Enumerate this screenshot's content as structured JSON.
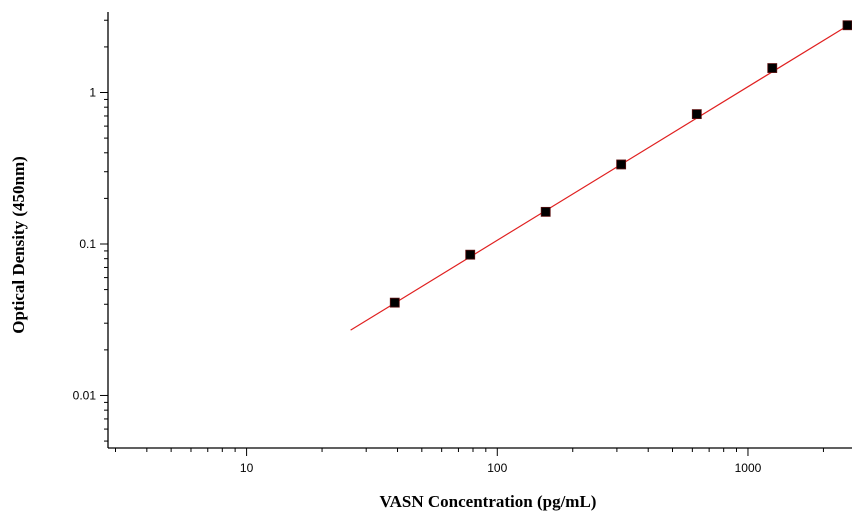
{
  "chart_data": {
    "type": "scatter",
    "title": "",
    "xlabel": "VASN Concentration (pg/mL)",
    "ylabel": "Optical Density (450nm)",
    "x_scale": "log",
    "y_scale": "log",
    "xlim": [
      2.8,
      2600
    ],
    "ylim": [
      0.0045,
      3.4
    ],
    "grid": false,
    "legend": "none",
    "x_ticks": [
      {
        "value": 10,
        "label": "10"
      },
      {
        "value": 100,
        "label": "100"
      },
      {
        "value": 1000,
        "label": "1000"
      }
    ],
    "y_ticks": [
      {
        "value": 0.01,
        "label": "0.01"
      },
      {
        "value": 0.1,
        "label": "0.1"
      },
      {
        "value": 1,
        "label": "1"
      }
    ],
    "series": [
      {
        "type": "scatter",
        "x": [
          39,
          78,
          156,
          312,
          625,
          1250,
          2500
        ],
        "y": [
          0.041,
          0.085,
          0.163,
          0.335,
          0.72,
          1.45,
          2.78
        ],
        "color": "#000000"
      },
      {
        "type": "line",
        "x": [
          26,
          2600
        ],
        "y": [
          0.027,
          2.85
        ],
        "color": "#e02020"
      }
    ]
  }
}
